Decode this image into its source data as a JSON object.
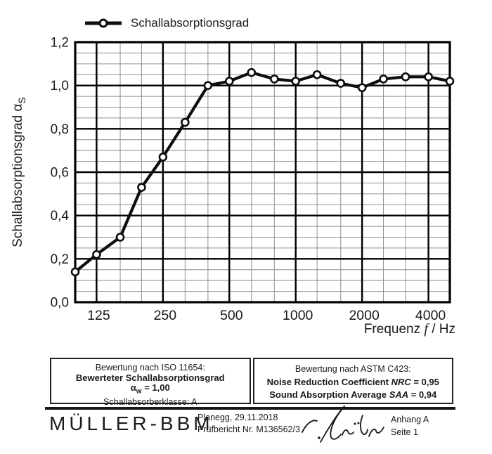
{
  "legend": {
    "label": "Schallabsorptionsgrad"
  },
  "chart_data": {
    "type": "line",
    "series": [
      {
        "name": "Schallabsorptionsgrad",
        "x_hz": [
          100,
          125,
          160,
          200,
          250,
          315,
          400,
          500,
          630,
          800,
          1000,
          1250,
          1600,
          2000,
          2500,
          3150,
          4000,
          5000
        ],
        "values": [
          0.14,
          0.22,
          0.3,
          0.53,
          0.67,
          0.83,
          1.0,
          1.02,
          1.06,
          1.03,
          1.02,
          1.05,
          1.01,
          0.99,
          1.03,
          1.04,
          1.04,
          1.02
        ]
      }
    ],
    "x_scale": "log",
    "x_range_hz": [
      100,
      5000
    ],
    "x_tick_values": [
      125,
      250,
      500,
      1000,
      2000,
      4000
    ],
    "x_tick_labels": [
      "125",
      "250",
      "500",
      "1000",
      "2000",
      "4000"
    ],
    "xlabel": "Frequenz f / Hz",
    "xlabel_parts": {
      "pre": "Frequenz ",
      "italic": "f",
      "post": " / Hz"
    },
    "ylabel": "Schallabsorptionsgrad αS",
    "ylabel_parts": {
      "pre": "Schallabsorptionsgrad α",
      "sub": "S"
    },
    "ylim": [
      0,
      1.2
    ],
    "y_tick_values": [
      0,
      0.2,
      0.4,
      0.6,
      0.8,
      1.0,
      1.2
    ],
    "y_tick_labels": [
      "0,0",
      "0,2",
      "0,4",
      "0,6",
      "0,8",
      "1,0",
      "1,2"
    ],
    "y_minor_step": 0.05,
    "grid": "major+minor",
    "legend_position": "top-left",
    "marker": "open-circle"
  },
  "boxes": {
    "iso": {
      "title": "Bewertung nach ISO 11654:",
      "rated_label": "Bewerteter Schallabsorptionsgrad",
      "alpha_pre": "α",
      "alpha_sub": "w",
      "alpha_post": " = 1,00",
      "class_line": "Schallabsorberklasse: A"
    },
    "astm": {
      "title": "Bewertung nach ASTM C423:",
      "nrc_pre": "Noise Reduction Coefficient ",
      "nrc_italic": "NRC",
      "nrc_post": " = 0,95",
      "saa_pre": "Sound Absorption Average ",
      "saa_italic": "SAA",
      "saa_post": " = 0,94"
    }
  },
  "footer": {
    "logo": "MÜLLER-BBM",
    "place_date": "Planegg, 29.11.2018",
    "report": "Prüfbericht Nr. M136562/3",
    "annex": "Anhang A",
    "page": "Seite 1"
  },
  "colors": {
    "ink": "#1a1a1a",
    "series_line": "#0d0d0d",
    "grid_minor": "#8f8f8f",
    "grid_major": "#000000"
  }
}
